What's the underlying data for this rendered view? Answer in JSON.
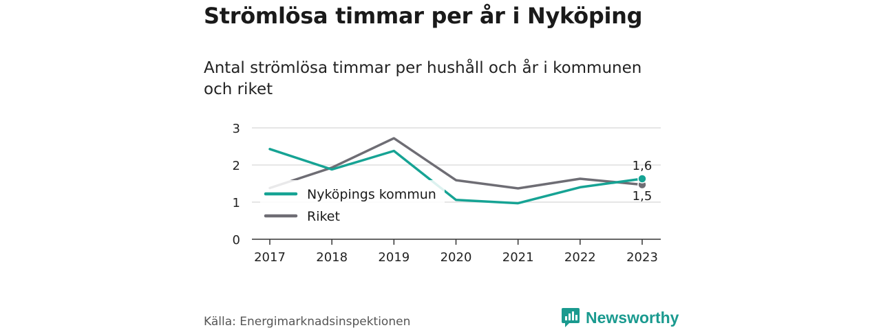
{
  "header": {
    "title": "Strömlösa timmar per år i Nyköping",
    "subtitle": "Antal strömlösa timmar per hushåll och år i kommunen och riket"
  },
  "footer": {
    "source": "Källa: Energimarknadsinspektionen",
    "brand": "Newsworthy"
  },
  "colors": {
    "nykoping": "#16a394",
    "riket": "#6e6d74",
    "grid": "#dddddd",
    "brand": "#1a9a8f"
  },
  "chart_data": {
    "type": "line",
    "title": "Strömlösa timmar per år i Nyköping",
    "subtitle": "Antal strömlösa timmar per hushåll och år i kommunen och riket",
    "x": [
      "2017",
      "2018",
      "2019",
      "2020",
      "2021",
      "2022",
      "2023"
    ],
    "ylim": [
      0,
      3
    ],
    "yticks": [
      0,
      1,
      2,
      3
    ],
    "grid": true,
    "legend_position": "left-center",
    "series": [
      {
        "name": "Nyköpings kommun",
        "values": [
          2.43,
          1.88,
          2.38,
          1.06,
          0.97,
          1.4,
          1.63
        ],
        "end_label": "1,6"
      },
      {
        "name": "Riket",
        "values": [
          1.38,
          1.93,
          2.72,
          1.59,
          1.37,
          1.63,
          1.47
        ],
        "end_label": "1,5"
      }
    ]
  }
}
